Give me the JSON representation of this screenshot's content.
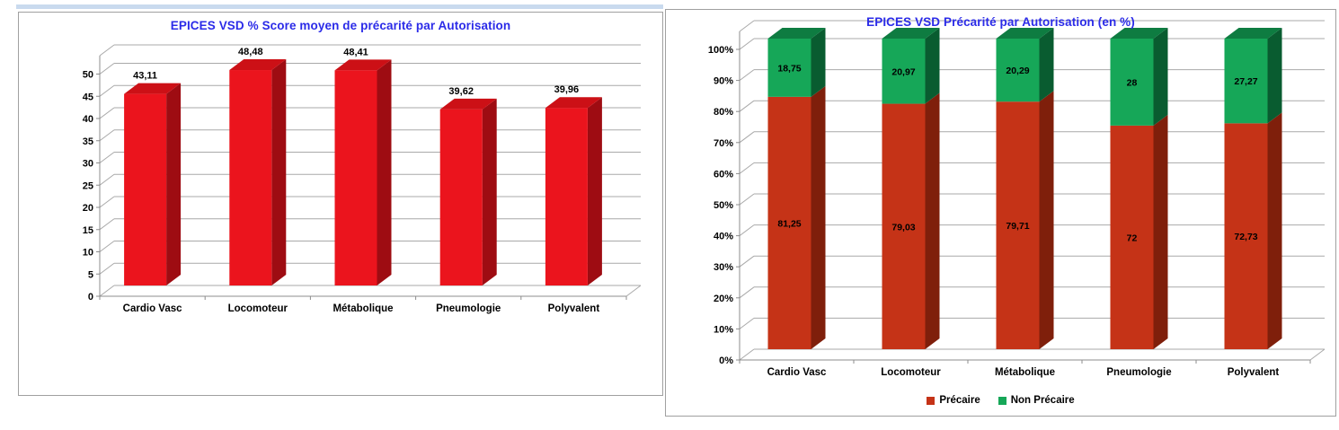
{
  "layout_colors": {
    "accent_strip": "#C9DAEE",
    "panel_border": "#A0A0A0",
    "gridline": "#A9A9A9",
    "axis_line": "#8C8C8C"
  },
  "chart_data": [
    {
      "type": "bar",
      "style": "3d-column",
      "title": "EPICES VSD % Score moyen de précarité par Autorisation",
      "title_color": "#2B2BE8",
      "categories": [
        "Cardio Vasc",
        "Locomoteur",
        "Métabolique",
        "Pneumologie",
        "Polyvalent"
      ],
      "values": [
        43.11,
        48.48,
        48.41,
        39.62,
        39.96
      ],
      "value_labels": [
        "43,11",
        "48,48",
        "48,41",
        "39,62",
        "39,96"
      ],
      "ylim": [
        0,
        50
      ],
      "tick_step": 5,
      "tick_labels": [
        "0",
        "5",
        "10",
        "15",
        "20",
        "25",
        "30",
        "35",
        "40",
        "45",
        "50"
      ],
      "grid": true,
      "legend": null,
      "bar_colors": {
        "front": "#EB141D",
        "side": "#9E0C12",
        "top": "#CC1016"
      }
    },
    {
      "type": "bar",
      "style": "3d-stacked-100",
      "title": "EPICES VSD Précarité par Autorisation (en %)",
      "title_color": "#2B2BE8",
      "categories": [
        "Cardio Vasc",
        "Locomoteur",
        "Métabolique",
        "Pneumologie",
        "Polyvalent"
      ],
      "series": [
        {
          "name": "Précaire",
          "values": [
            81.25,
            79.03,
            79.71,
            72,
            72.73
          ],
          "value_labels": [
            "81,25",
            "79,03",
            "79,71",
            "72",
            "72,73"
          ],
          "colors": {
            "front": "#C53317",
            "side": "#7F1F0B",
            "top": "#9E2910"
          }
        },
        {
          "name": "Non Précaire",
          "values": [
            18.75,
            20.97,
            20.29,
            28,
            27.27
          ],
          "value_labels": [
            "18,75",
            "20,97",
            "20,29",
            "28",
            "27,27"
          ],
          "colors": {
            "front": "#16A758",
            "side": "#095C30",
            "top": "#0E7C41"
          }
        }
      ],
      "ylim": [
        0,
        100
      ],
      "tick_step": 10,
      "tick_labels": [
        "0%",
        "10%",
        "20%",
        "30%",
        "40%",
        "50%",
        "60%",
        "70%",
        "80%",
        "90%",
        "100%"
      ],
      "grid": true,
      "legend": {
        "position": "bottom",
        "entries": [
          {
            "label": "Précaire",
            "color": "#C53317"
          },
          {
            "label": "Non Précaire",
            "color": "#16A758"
          }
        ]
      }
    }
  ]
}
